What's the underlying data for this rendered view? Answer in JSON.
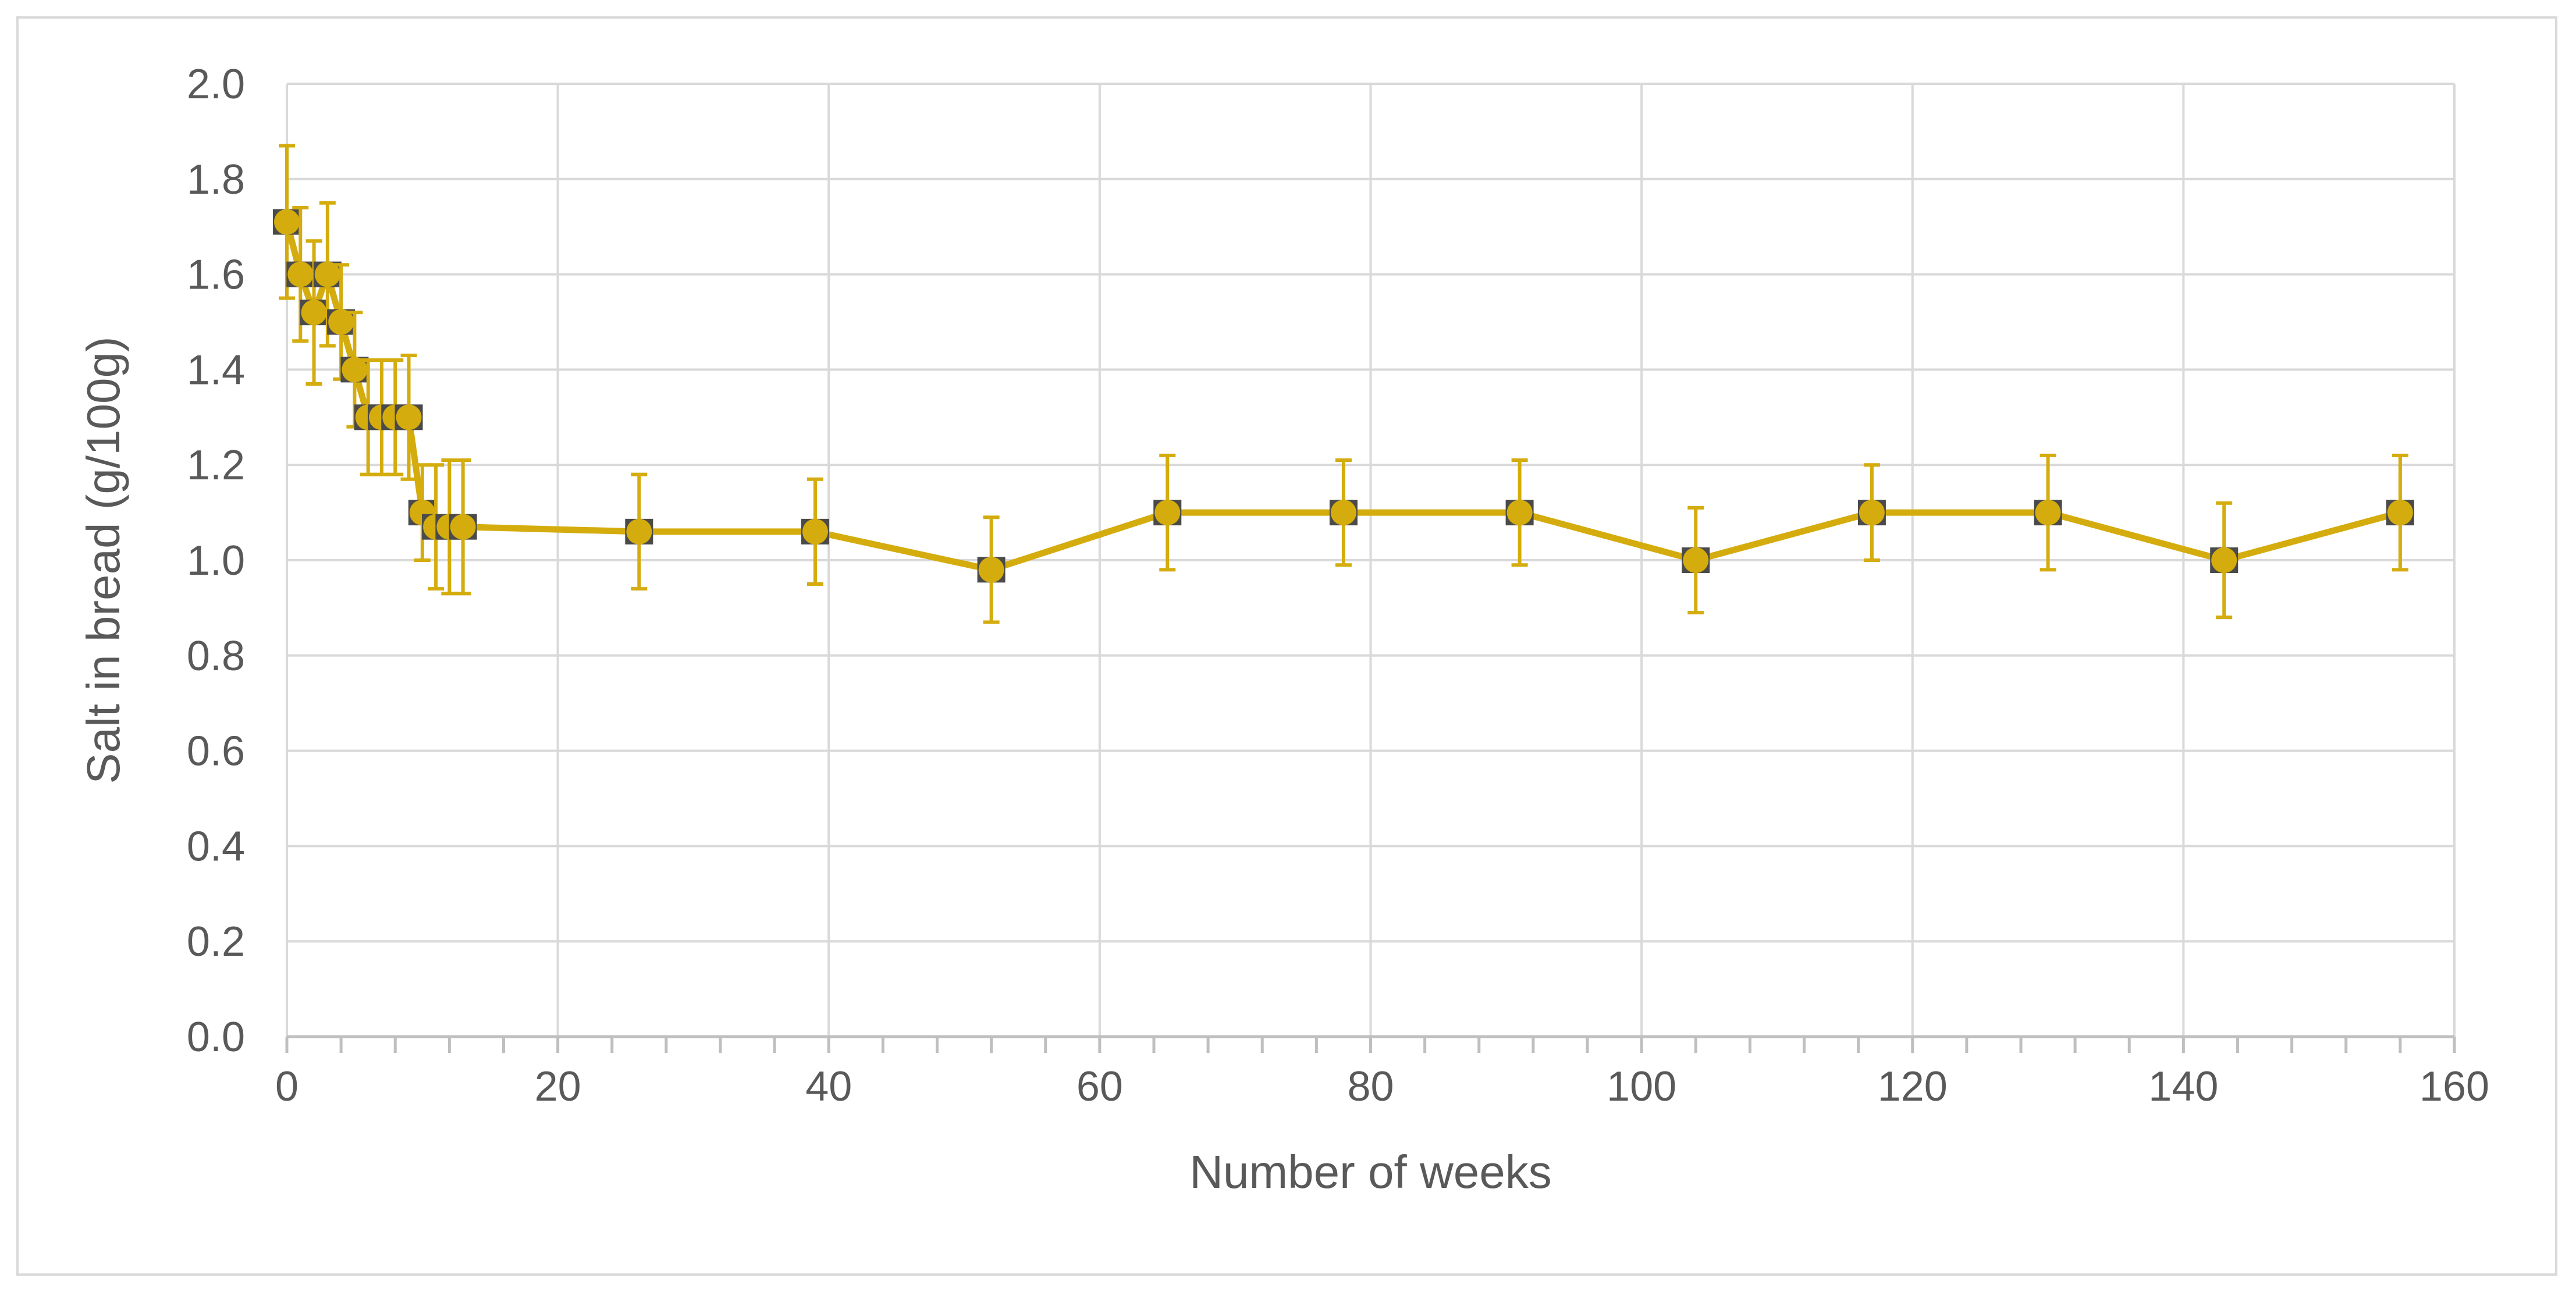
{
  "chart_data": {
    "type": "line",
    "title": "",
    "xlabel": "Number of weeks",
    "ylabel": "Salt in bread (g/100g)",
    "xlim": [
      0,
      160
    ],
    "ylim": [
      0,
      2.0
    ],
    "x_ticks": [
      0,
      20,
      40,
      60,
      80,
      100,
      120,
      140,
      160
    ],
    "y_ticks": [
      0.0,
      0.2,
      0.4,
      0.6,
      0.8,
      1.0,
      1.2,
      1.4,
      1.6,
      1.8,
      2.0
    ],
    "x_tick_labels": [
      "0",
      "20",
      "40",
      "60",
      "80",
      "100",
      "120",
      "140",
      "160"
    ],
    "y_tick_labels": [
      "0.0",
      "0.2",
      "0.4",
      "0.6",
      "0.8",
      "1.0",
      "1.2",
      "1.4",
      "1.6",
      "1.8",
      "2.0"
    ],
    "grid": true,
    "legend": "none",
    "colors": {
      "series": "#d4ac0d",
      "grid": "#d9d9d9",
      "axis": "#bfbfbf",
      "text": "#595959"
    },
    "series": [
      {
        "x": [
          0,
          1,
          2,
          3,
          4,
          5,
          6,
          7,
          8,
          9,
          10,
          11,
          12,
          13,
          26,
          39,
          52,
          65,
          78,
          91,
          104,
          117,
          130,
          143,
          156
        ],
        "y": [
          1.71,
          1.6,
          1.52,
          1.6,
          1.5,
          1.4,
          1.3,
          1.3,
          1.3,
          1.3,
          1.1,
          1.07,
          1.07,
          1.07,
          1.06,
          1.06,
          0.98,
          1.1,
          1.1,
          1.1,
          1.0,
          1.1,
          1.1,
          1.0,
          1.1
        ],
        "error": [
          0.16,
          0.14,
          0.15,
          0.15,
          0.12,
          0.12,
          0.12,
          0.12,
          0.12,
          0.13,
          0.1,
          0.13,
          0.14,
          0.14,
          0.12,
          0.11,
          0.11,
          0.12,
          0.11,
          0.11,
          0.11,
          0.1,
          0.12,
          0.12,
          0.12
        ]
      }
    ]
  }
}
